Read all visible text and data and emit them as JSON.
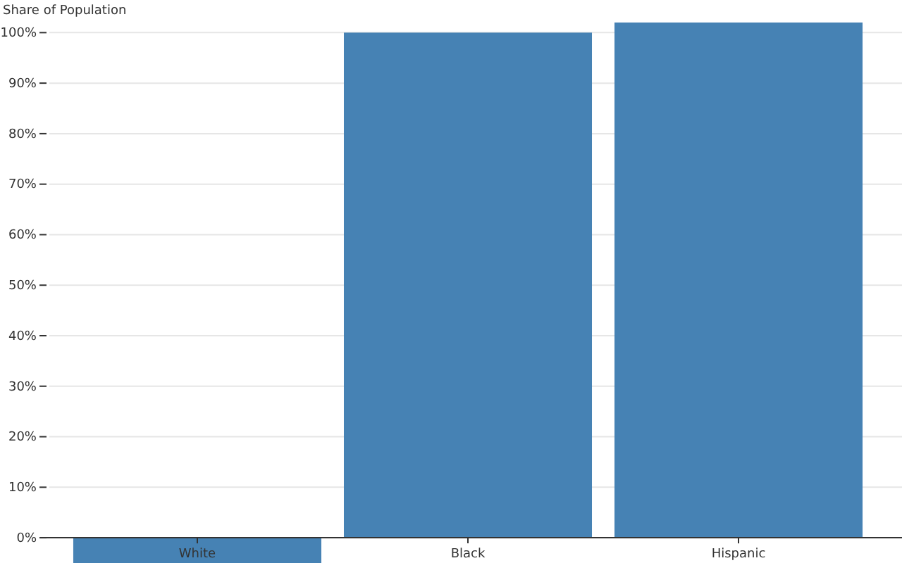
{
  "chart_data": {
    "type": "bar",
    "ylabel": "Share of Population",
    "categories": [
      "White",
      "Black",
      "Hispanic"
    ],
    "values": [
      -5,
      100,
      102
    ],
    "color": "#4682b4",
    "ylim": [
      -5,
      102
    ],
    "yticks": [
      {
        "value": 0,
        "label": "0%"
      },
      {
        "value": 10,
        "label": "10%"
      },
      {
        "value": 20,
        "label": "20%"
      },
      {
        "value": 30,
        "label": "30%"
      },
      {
        "value": 40,
        "label": "40%"
      },
      {
        "value": 50,
        "label": "50%"
      },
      {
        "value": 60,
        "label": "60%"
      },
      {
        "value": 70,
        "label": "70%"
      },
      {
        "value": 80,
        "label": "80%"
      },
      {
        "value": 90,
        "label": "90%"
      },
      {
        "value": 100,
        "label": "100%"
      }
    ],
    "grid": "y"
  }
}
